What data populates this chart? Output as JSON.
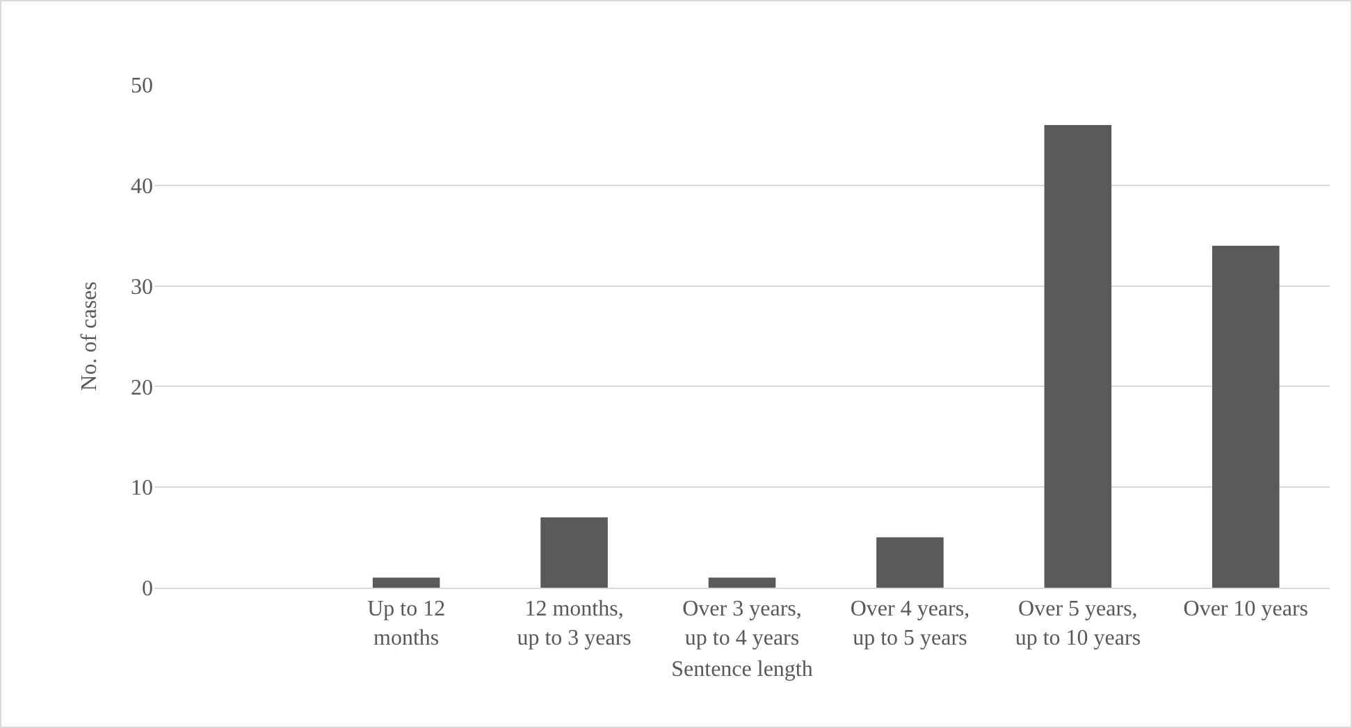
{
  "chart_data": {
    "type": "bar",
    "xlabel": "Sentence length",
    "ylabel": "No. of cases",
    "categories": [
      null,
      "Up to 12\nmonths",
      "12 months,\nup to 3 years",
      "Over 3 years,\nup to 4 years",
      "Over 4 years,\nup to 5 years",
      "Over 5 years,\nup to 10 years",
      "Over 10 years"
    ],
    "values": [
      null,
      1,
      7,
      1,
      5,
      46,
      34
    ],
    "color": "#595959",
    "ylim": [
      0,
      50
    ],
    "yticks": [
      0,
      10,
      20,
      30,
      40,
      50
    ],
    "grid": "y",
    "legend": false
  }
}
